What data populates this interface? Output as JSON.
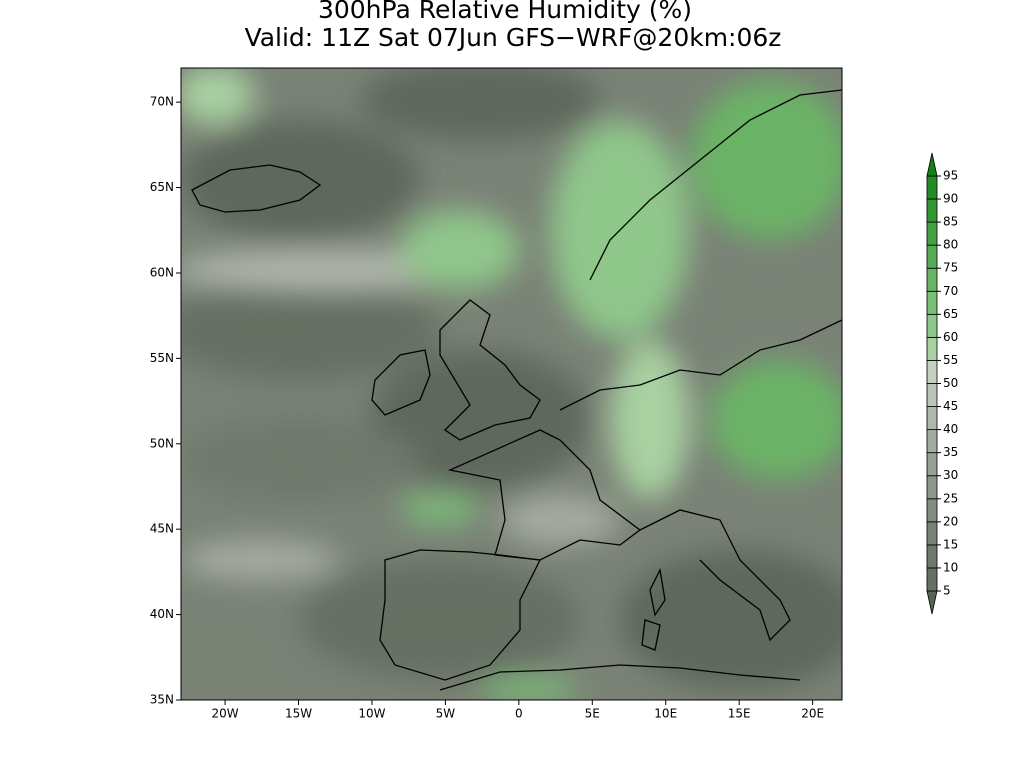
{
  "title": "300hPa Relative Humidity (%)",
  "subtitle": "Valid: 11Z Sat 07Jun GFS−WRF@20km:06z",
  "map": {
    "lat_range": [
      35,
      72
    ],
    "lon_range": [
      -23,
      22
    ],
    "lat_ticks": [
      {
        "value": 70,
        "label": "70N"
      },
      {
        "value": 65,
        "label": "65N"
      },
      {
        "value": 60,
        "label": "60N"
      },
      {
        "value": 55,
        "label": "55N"
      },
      {
        "value": 50,
        "label": "50N"
      },
      {
        "value": 45,
        "label": "45N"
      },
      {
        "value": 40,
        "label": "40N"
      },
      {
        "value": 35,
        "label": "35N"
      }
    ],
    "lon_ticks": [
      {
        "value": -20,
        "label": "20W"
      },
      {
        "value": -15,
        "label": "15W"
      },
      {
        "value": -10,
        "label": "10W"
      },
      {
        "value": -5,
        "label": "5W"
      },
      0,
      {
        "value": 5,
        "label": "5E"
      },
      {
        "value": 10,
        "label": "10E"
      },
      {
        "value": 15,
        "label": "15E"
      },
      {
        "value": 20,
        "label": "20E"
      }
    ]
  },
  "colorbar": {
    "levels": [
      5,
      10,
      15,
      20,
      25,
      30,
      35,
      40,
      45,
      50,
      55,
      60,
      65,
      70,
      75,
      80,
      85,
      90,
      95
    ],
    "colors": [
      "#5a6358",
      "#667063",
      "#6f786c",
      "#7a8276",
      "#848c80",
      "#8e968a",
      "#99a095",
      "#a4aba0",
      "#b0b7ac",
      "#bcc3b8",
      "#c5d0c0",
      "#a8d0a0",
      "#8fc68a",
      "#7cbd78",
      "#6ab366",
      "#58aa55",
      "#44a044",
      "#339633",
      "#238c26",
      "#138013"
    ]
  }
}
